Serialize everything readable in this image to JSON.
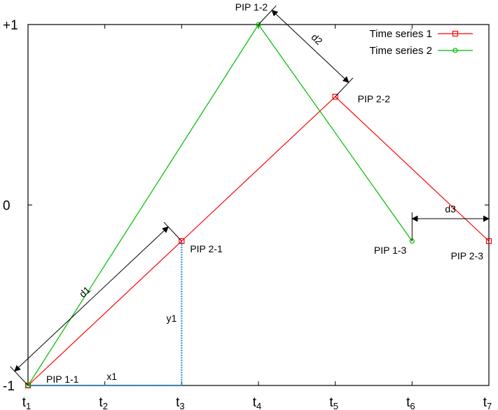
{
  "chart_data": {
    "type": "line",
    "title": "",
    "xlabel": "",
    "ylabel": "",
    "x_categories": [
      "t1",
      "t2",
      "t3",
      "t4",
      "t5",
      "t6",
      "t7"
    ],
    "x_ticks": [
      {
        "base": "t",
        "sub": "1"
      },
      {
        "base": "t",
        "sub": "2"
      },
      {
        "base": "t",
        "sub": "3"
      },
      {
        "base": "t",
        "sub": "4"
      },
      {
        "base": "t",
        "sub": "5"
      },
      {
        "base": "t",
        "sub": "6"
      },
      {
        "base": "t",
        "sub": "7"
      }
    ],
    "y_ticks": [
      {
        "value": 1,
        "label": "+1"
      },
      {
        "value": 0,
        "label": "0"
      },
      {
        "value": -1,
        "label": "-1"
      }
    ],
    "xlim": [
      1,
      7
    ],
    "ylim": [
      -1,
      1
    ],
    "grid": false,
    "legend_position": "top-right",
    "series": [
      {
        "name": "Time series 1",
        "color": "#ff0000",
        "marker": "square",
        "points": [
          {
            "x": 1,
            "y": -1.0
          },
          {
            "x": 3,
            "y": -0.2
          },
          {
            "x": 5,
            "y": 0.6
          },
          {
            "x": 7,
            "y": -0.2
          }
        ]
      },
      {
        "name": "Time series 2",
        "color": "#00bb00",
        "marker": "circle",
        "points": [
          {
            "x": 1,
            "y": -1.0
          },
          {
            "x": 4,
            "y": 1.0
          },
          {
            "x": 6,
            "y": -0.2
          }
        ]
      }
    ],
    "annotations": {
      "pip_labels": [
        {
          "text": "PIP 1-1",
          "x": 1,
          "y": -1.0
        },
        {
          "text": "PIP 2-1",
          "x": 3,
          "y": -0.2
        },
        {
          "text": "PIP 1-2",
          "x": 4,
          "y": 1.0
        },
        {
          "text": "PIP 2-2",
          "x": 5,
          "y": 0.6
        },
        {
          "text": "PIP 1-3",
          "x": 6,
          "y": -0.2
        },
        {
          "text": "PIP 2-3",
          "x": 7,
          "y": -0.2
        }
      ],
      "distances": [
        {
          "label": "d1",
          "from": {
            "x": 1,
            "y": -1.0
          },
          "to": {
            "x": 3,
            "y": -0.2
          }
        },
        {
          "label": "d2",
          "from": {
            "x": 4,
            "y": 1.0
          },
          "to": {
            "x": 5,
            "y": 0.6
          }
        },
        {
          "label": "d3",
          "from": {
            "x": 6,
            "y": -0.2
          },
          "to": {
            "x": 7,
            "y": -0.2
          }
        }
      ],
      "components": [
        {
          "label": "x1",
          "from": {
            "x": 1,
            "y": -1.0
          },
          "to": {
            "x": 3,
            "y": -1.0
          }
        },
        {
          "label": "y1",
          "from": {
            "x": 3,
            "y": -1.0
          },
          "to": {
            "x": 3,
            "y": -0.2
          }
        }
      ],
      "component_color": "#3399dd",
      "distance_color": "#000000"
    }
  }
}
